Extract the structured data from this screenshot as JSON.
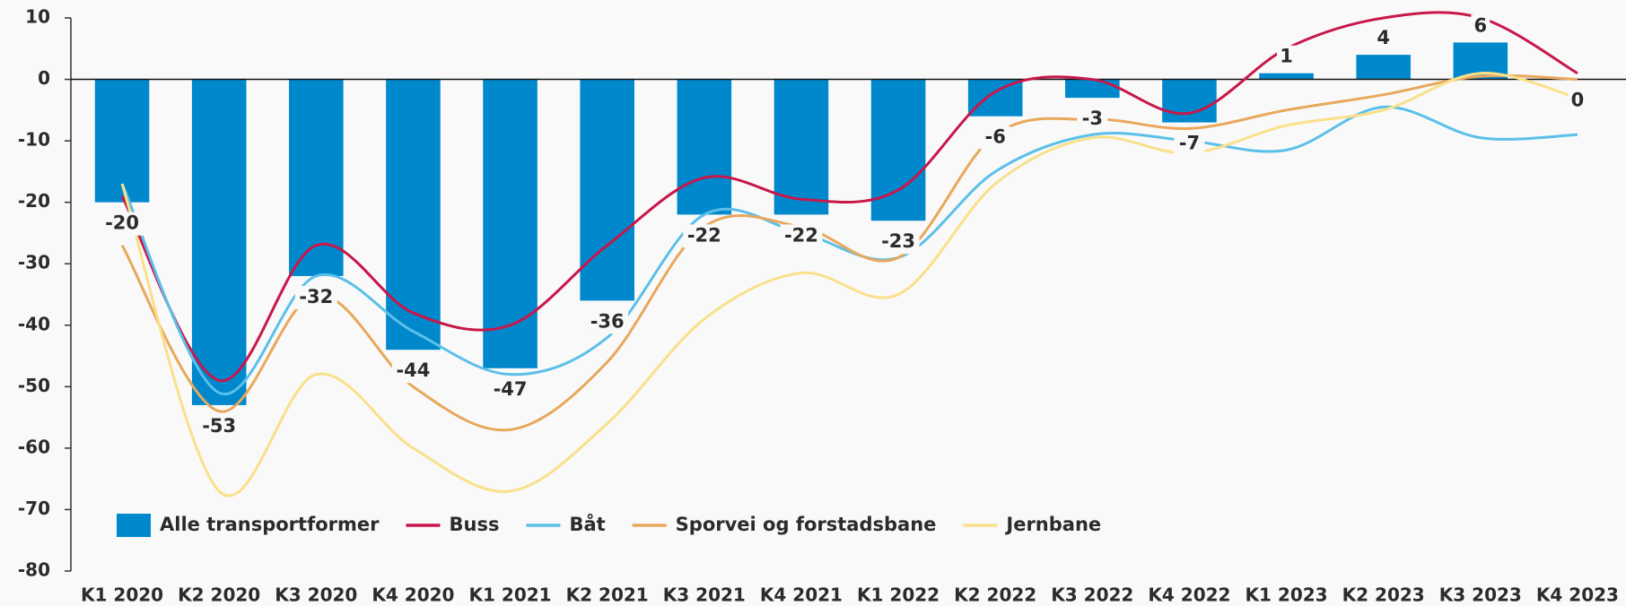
{
  "chart_data": {
    "type": "bar",
    "categories": [
      "K1 2020",
      "K2 2020",
      "K3 2020",
      "K4 2020",
      "K1 2021",
      "K2 2021",
      "K3 2021",
      "K4 2021",
      "K1 2022",
      "K2 2022",
      "K3 2022",
      "K4 2022",
      "K1 2023",
      "K2 2023",
      "K3 2023",
      "K4 2023"
    ],
    "series": [
      {
        "name": "Alle transportformer",
        "type": "bar",
        "color": "#0088cc",
        "values": [
          -20,
          -53,
          -32,
          -44,
          -47,
          -36,
          -22,
          -22,
          -23,
          -6,
          -3,
          -7,
          1,
          4,
          6,
          0
        ]
      },
      {
        "name": "Buss",
        "type": "line",
        "color": "#c8174a",
        "values": [
          -19,
          -49,
          -27,
          -38,
          -40,
          -27,
          -16,
          -19.5,
          -18,
          -2,
          0,
          -5.5,
          5,
          10,
          10,
          1
        ]
      },
      {
        "name": "Båt",
        "type": "line",
        "color": "#5bc0e8",
        "values": [
          -17,
          -51,
          -32,
          -41,
          -48,
          -42,
          -22,
          -25,
          -29,
          -15,
          -9,
          -10,
          -11.5,
          -4.5,
          -9.5,
          -9
        ]
      },
      {
        "name": "Sporvei og forstadsbane",
        "type": "line",
        "color": "#e8a85c",
        "values": [
          -27,
          -54,
          -35,
          -50,
          -57,
          -46,
          -24,
          -24,
          -29,
          -9,
          -6.5,
          -8,
          -5,
          -2.5,
          0.5,
          0
        ]
      },
      {
        "name": "Jernbane",
        "type": "line",
        "color": "#f9e08a",
        "values": [
          -17,
          -67,
          -48,
          -60,
          -67,
          -56,
          -39,
          -31.5,
          -35,
          -17,
          -9.5,
          -12,
          -7.5,
          -5,
          1,
          -3
        ]
      }
    ],
    "ylim": [
      -80,
      10
    ],
    "yticks": [
      -80,
      -70,
      -60,
      -50,
      -40,
      -30,
      -20,
      -10,
      0,
      10
    ],
    "legend": "bottom-left"
  }
}
